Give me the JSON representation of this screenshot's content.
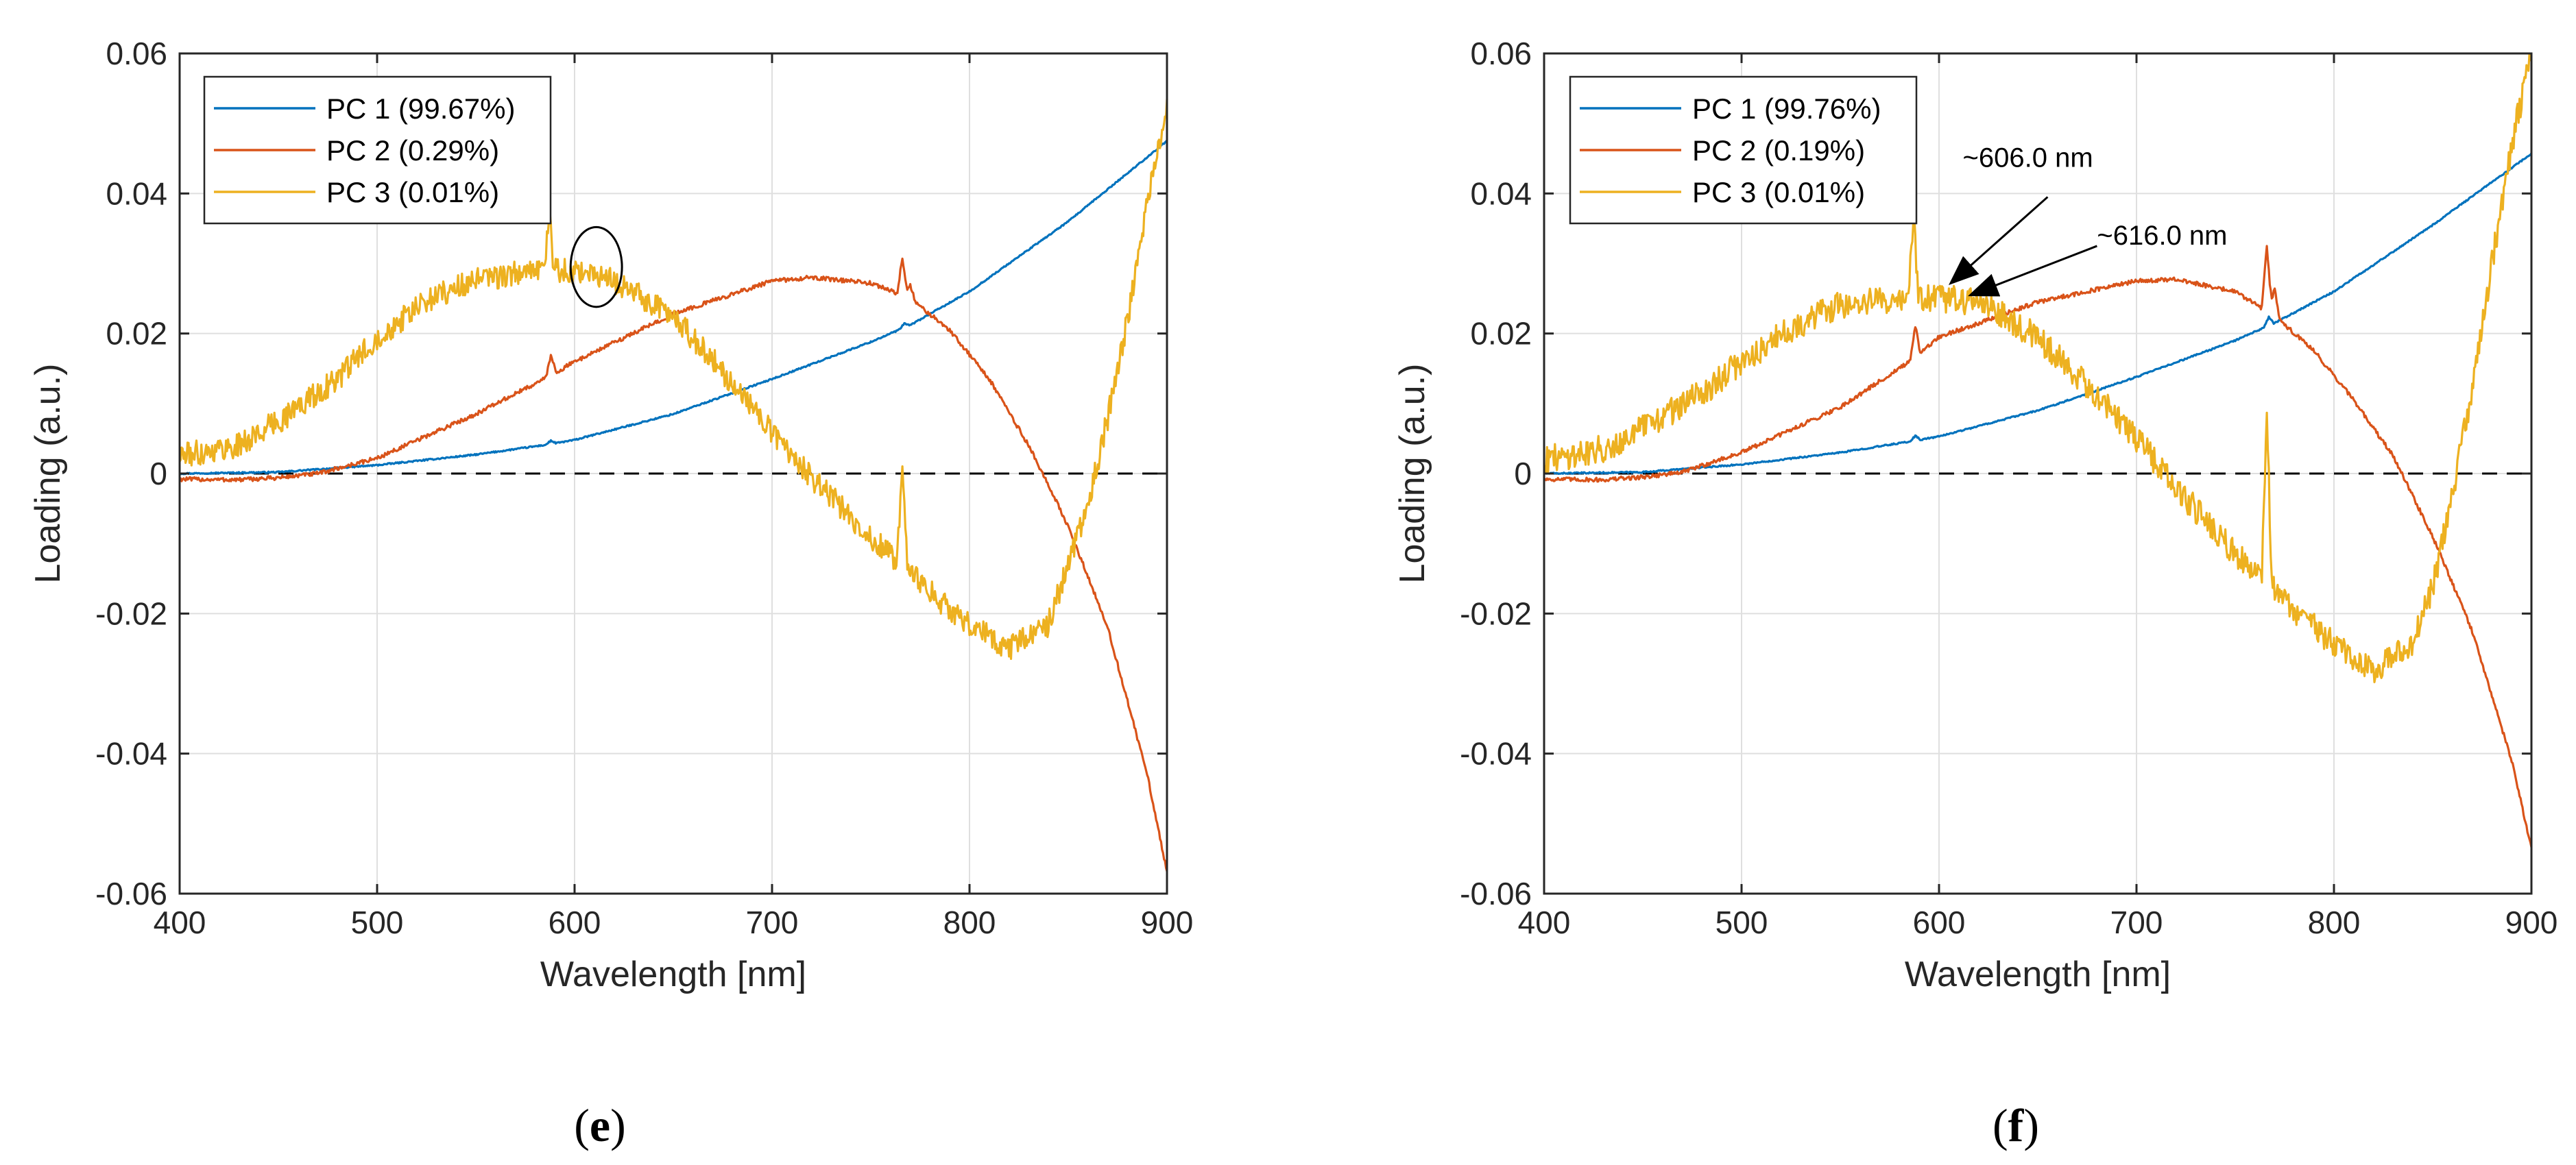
{
  "chart_data": [
    {
      "type": "line",
      "panel": "e",
      "caption": {
        "open": "(",
        "letter": "e",
        "close": ")"
      },
      "xlabel": "Wavelength [nm]",
      "ylabel": "Loading (a.u.)",
      "xlim": [
        400,
        900
      ],
      "ylim": [
        -0.06,
        0.06
      ],
      "xticks": [
        400,
        500,
        600,
        700,
        800,
        900
      ],
      "yticks": [
        -0.06,
        -0.04,
        -0.02,
        0,
        0.02,
        0.04,
        0.06
      ],
      "ytick_labels": [
        "-0.06",
        "-0.04",
        "-0.02",
        "0",
        "0.02",
        "0.04",
        "0.06"
      ],
      "grid": true,
      "zero_line": "dashed",
      "legend_position": "top-left",
      "series": [
        {
          "name": "PC 1 (99.67%)",
          "color": "#0072BD",
          "x": [
            400,
            450,
            500,
            550,
            588,
            600,
            650,
            700,
            750,
            770,
            800,
            850,
            900
          ],
          "y": [
            0.0,
            0.0002,
            0.0012,
            0.0027,
            0.0042,
            0.0048,
            0.0085,
            0.0135,
            0.0188,
            0.0212,
            0.026,
            0.036,
            0.0475
          ],
          "spikes": [
            {
              "x": 588,
              "h": 0.0005
            },
            {
              "x": 767,
              "h": 0.0006
            }
          ],
          "noise": 0.0001
        },
        {
          "name": "PC 2 (0.29%)",
          "color": "#D95319",
          "x": [
            400,
            430,
            450,
            470,
            500,
            550,
            588,
            600,
            650,
            700,
            720,
            750,
            770,
            790,
            810,
            830,
            850,
            870,
            890,
            900
          ],
          "y": [
            -0.0008,
            -0.0009,
            -0.0006,
            0.0,
            0.0022,
            0.0085,
            0.014,
            0.016,
            0.0228,
            0.0275,
            0.028,
            0.0272,
            0.025,
            0.0205,
            0.0135,
            0.004,
            -0.0075,
            -0.022,
            -0.043,
            -0.057
          ],
          "spikes": [
            {
              "x": 588,
              "h": 0.003
            },
            {
              "x": 766,
              "h": 0.0055
            },
            {
              "x": 770,
              "h": 0.002
            }
          ],
          "noise": 0.0003
        },
        {
          "name": "PC 3 (0.01%)",
          "color": "#EDB120",
          "x": [
            400,
            430,
            450,
            480,
            500,
            530,
            550,
            580,
            600,
            620,
            650,
            680,
            700,
            720,
            750,
            780,
            800,
            820,
            840,
            850,
            860,
            870,
            880,
            890,
            900
          ],
          "y": [
            0.0025,
            0.004,
            0.0075,
            0.0135,
            0.0195,
            0.0255,
            0.0275,
            0.029,
            0.029,
            0.0275,
            0.0225,
            0.013,
            0.006,
            -0.0005,
            -0.009,
            -0.017,
            -0.0215,
            -0.025,
            -0.0215,
            -0.013,
            -0.0045,
            0.008,
            0.022,
            0.039,
            0.053
          ],
          "spikes": [
            {
              "x": 587,
              "h": 0.008
            },
            {
              "x": 766,
              "h": 0.015
            }
          ],
          "noise": 0.0018
        }
      ],
      "annotations": [
        {
          "kind": "ellipse",
          "x": 611,
          "y": 0.0295,
          "rx": 13,
          "ry": 0.0057
        }
      ]
    },
    {
      "type": "line",
      "panel": "f",
      "caption": {
        "open": "(",
        "letter": "f",
        "close": ")"
      },
      "xlabel": "Wavelength [nm]",
      "ylabel": "Loading (a.u.)",
      "xlim": [
        400,
        900
      ],
      "ylim": [
        -0.06,
        0.06
      ],
      "xticks": [
        400,
        500,
        600,
        700,
        800,
        900
      ],
      "yticks": [
        -0.06,
        -0.04,
        -0.02,
        0,
        0.02,
        0.04,
        0.06
      ],
      "ytick_labels": [
        "-0.06",
        "-0.04",
        "-0.02",
        "0",
        "0.02",
        "0.04",
        "0.06"
      ],
      "grid": true,
      "zero_line": "dashed",
      "legend_position": "top-left",
      "series": [
        {
          "name": "PC 1 (99.76%)",
          "color": "#0072BD",
          "x": [
            400,
            450,
            500,
            550,
            588,
            600,
            650,
            700,
            750,
            770,
            800,
            850,
            900
          ],
          "y": [
            0.0,
            0.0002,
            0.0013,
            0.003,
            0.0047,
            0.0053,
            0.009,
            0.0138,
            0.019,
            0.0215,
            0.026,
            0.0355,
            0.0457
          ],
          "spikes": [
            {
              "x": 588,
              "h": 0.0007
            },
            {
              "x": 767,
              "h": 0.0012
            }
          ],
          "noise": 0.0001
        },
        {
          "name": "PC 2 (0.19%)",
          "color": "#D95319",
          "x": [
            400,
            430,
            450,
            470,
            500,
            550,
            588,
            600,
            620,
            650,
            700,
            720,
            750,
            770,
            790,
            810,
            830,
            850,
            870,
            890,
            900
          ],
          "y": [
            -0.0008,
            -0.0009,
            -0.0005,
            0.0002,
            0.003,
            0.0095,
            0.0165,
            0.0195,
            0.0215,
            0.0245,
            0.0275,
            0.0277,
            0.026,
            0.0225,
            0.0175,
            0.0105,
            0.0025,
            -0.009,
            -0.0225,
            -0.041,
            -0.0535
          ],
          "spikes": [
            {
              "x": 588,
              "h": 0.0045
            },
            {
              "x": 766,
              "h": 0.0095
            },
            {
              "x": 770,
              "h": 0.004
            }
          ],
          "noise": 0.0003
        },
        {
          "name": "PC 3 (0.01%)",
          "color": "#EDB120",
          "x": [
            400,
            430,
            450,
            480,
            500,
            530,
            550,
            580,
            600,
            620,
            650,
            680,
            700,
            720,
            750,
            780,
            800,
            820,
            840,
            850,
            860,
            870,
            880,
            890,
            900
          ],
          "y": [
            0.002,
            0.0035,
            0.0065,
            0.0115,
            0.016,
            0.0215,
            0.024,
            0.025,
            0.025,
            0.0245,
            0.0195,
            0.011,
            0.005,
            -0.002,
            -0.0115,
            -0.0195,
            -0.0245,
            -0.028,
            -0.0245,
            -0.016,
            -0.0035,
            0.0125,
            0.03,
            0.047,
            0.06
          ],
          "spikes": [
            {
              "x": 587,
              "h": 0.012
            },
            {
              "x": 766,
              "h": 0.025
            }
          ],
          "noise": 0.002
        }
      ],
      "annotations": [
        {
          "kind": "arrow",
          "text": "~606.0 nm",
          "text_x": 645,
          "text_y": 0.0438,
          "tip_x": 606,
          "tip_y": 0.0272,
          "tail_x": 655,
          "tail_y": 0.0395
        },
        {
          "kind": "arrow",
          "text": "~616.0 nm",
          "text_x": 713,
          "text_y": 0.0327,
          "tip_x": 616,
          "tip_y": 0.0255,
          "tail_x": 680,
          "tail_y": 0.0325
        }
      ]
    }
  ]
}
